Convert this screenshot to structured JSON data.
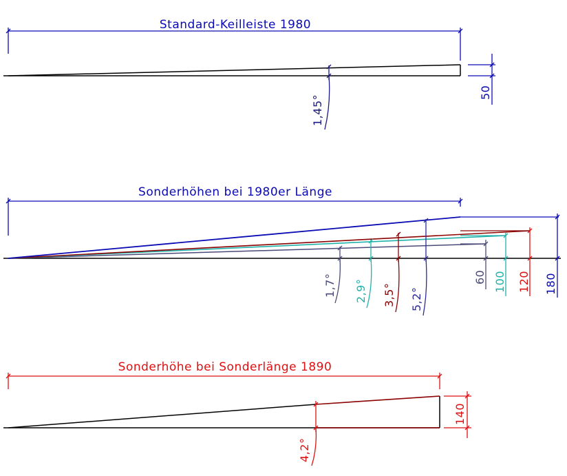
{
  "colors": {
    "outline": "#000000",
    "blue": "#0a0ab4",
    "navy": "#1a1a80",
    "darkred": "#8b0000",
    "teal": "#20b2aa",
    "slate": "#4a4a78",
    "red": "#dd1111",
    "angle_blue": "#2a2a9a"
  },
  "section1": {
    "title": "Standard-Keilleiste 1980",
    "angle": "1,45°",
    "height": "50"
  },
  "section2": {
    "title": "Sonderhöhen bei 1980er Länge",
    "angles": [
      "1,7°",
      "2,9°",
      "3,5°",
      "5,2°"
    ],
    "heights": [
      "60",
      "100",
      "120",
      "180"
    ]
  },
  "section3": {
    "title": "Sonderhöhe bei Sonderlänge 1890",
    "angle": "4,2°",
    "height": "140"
  }
}
